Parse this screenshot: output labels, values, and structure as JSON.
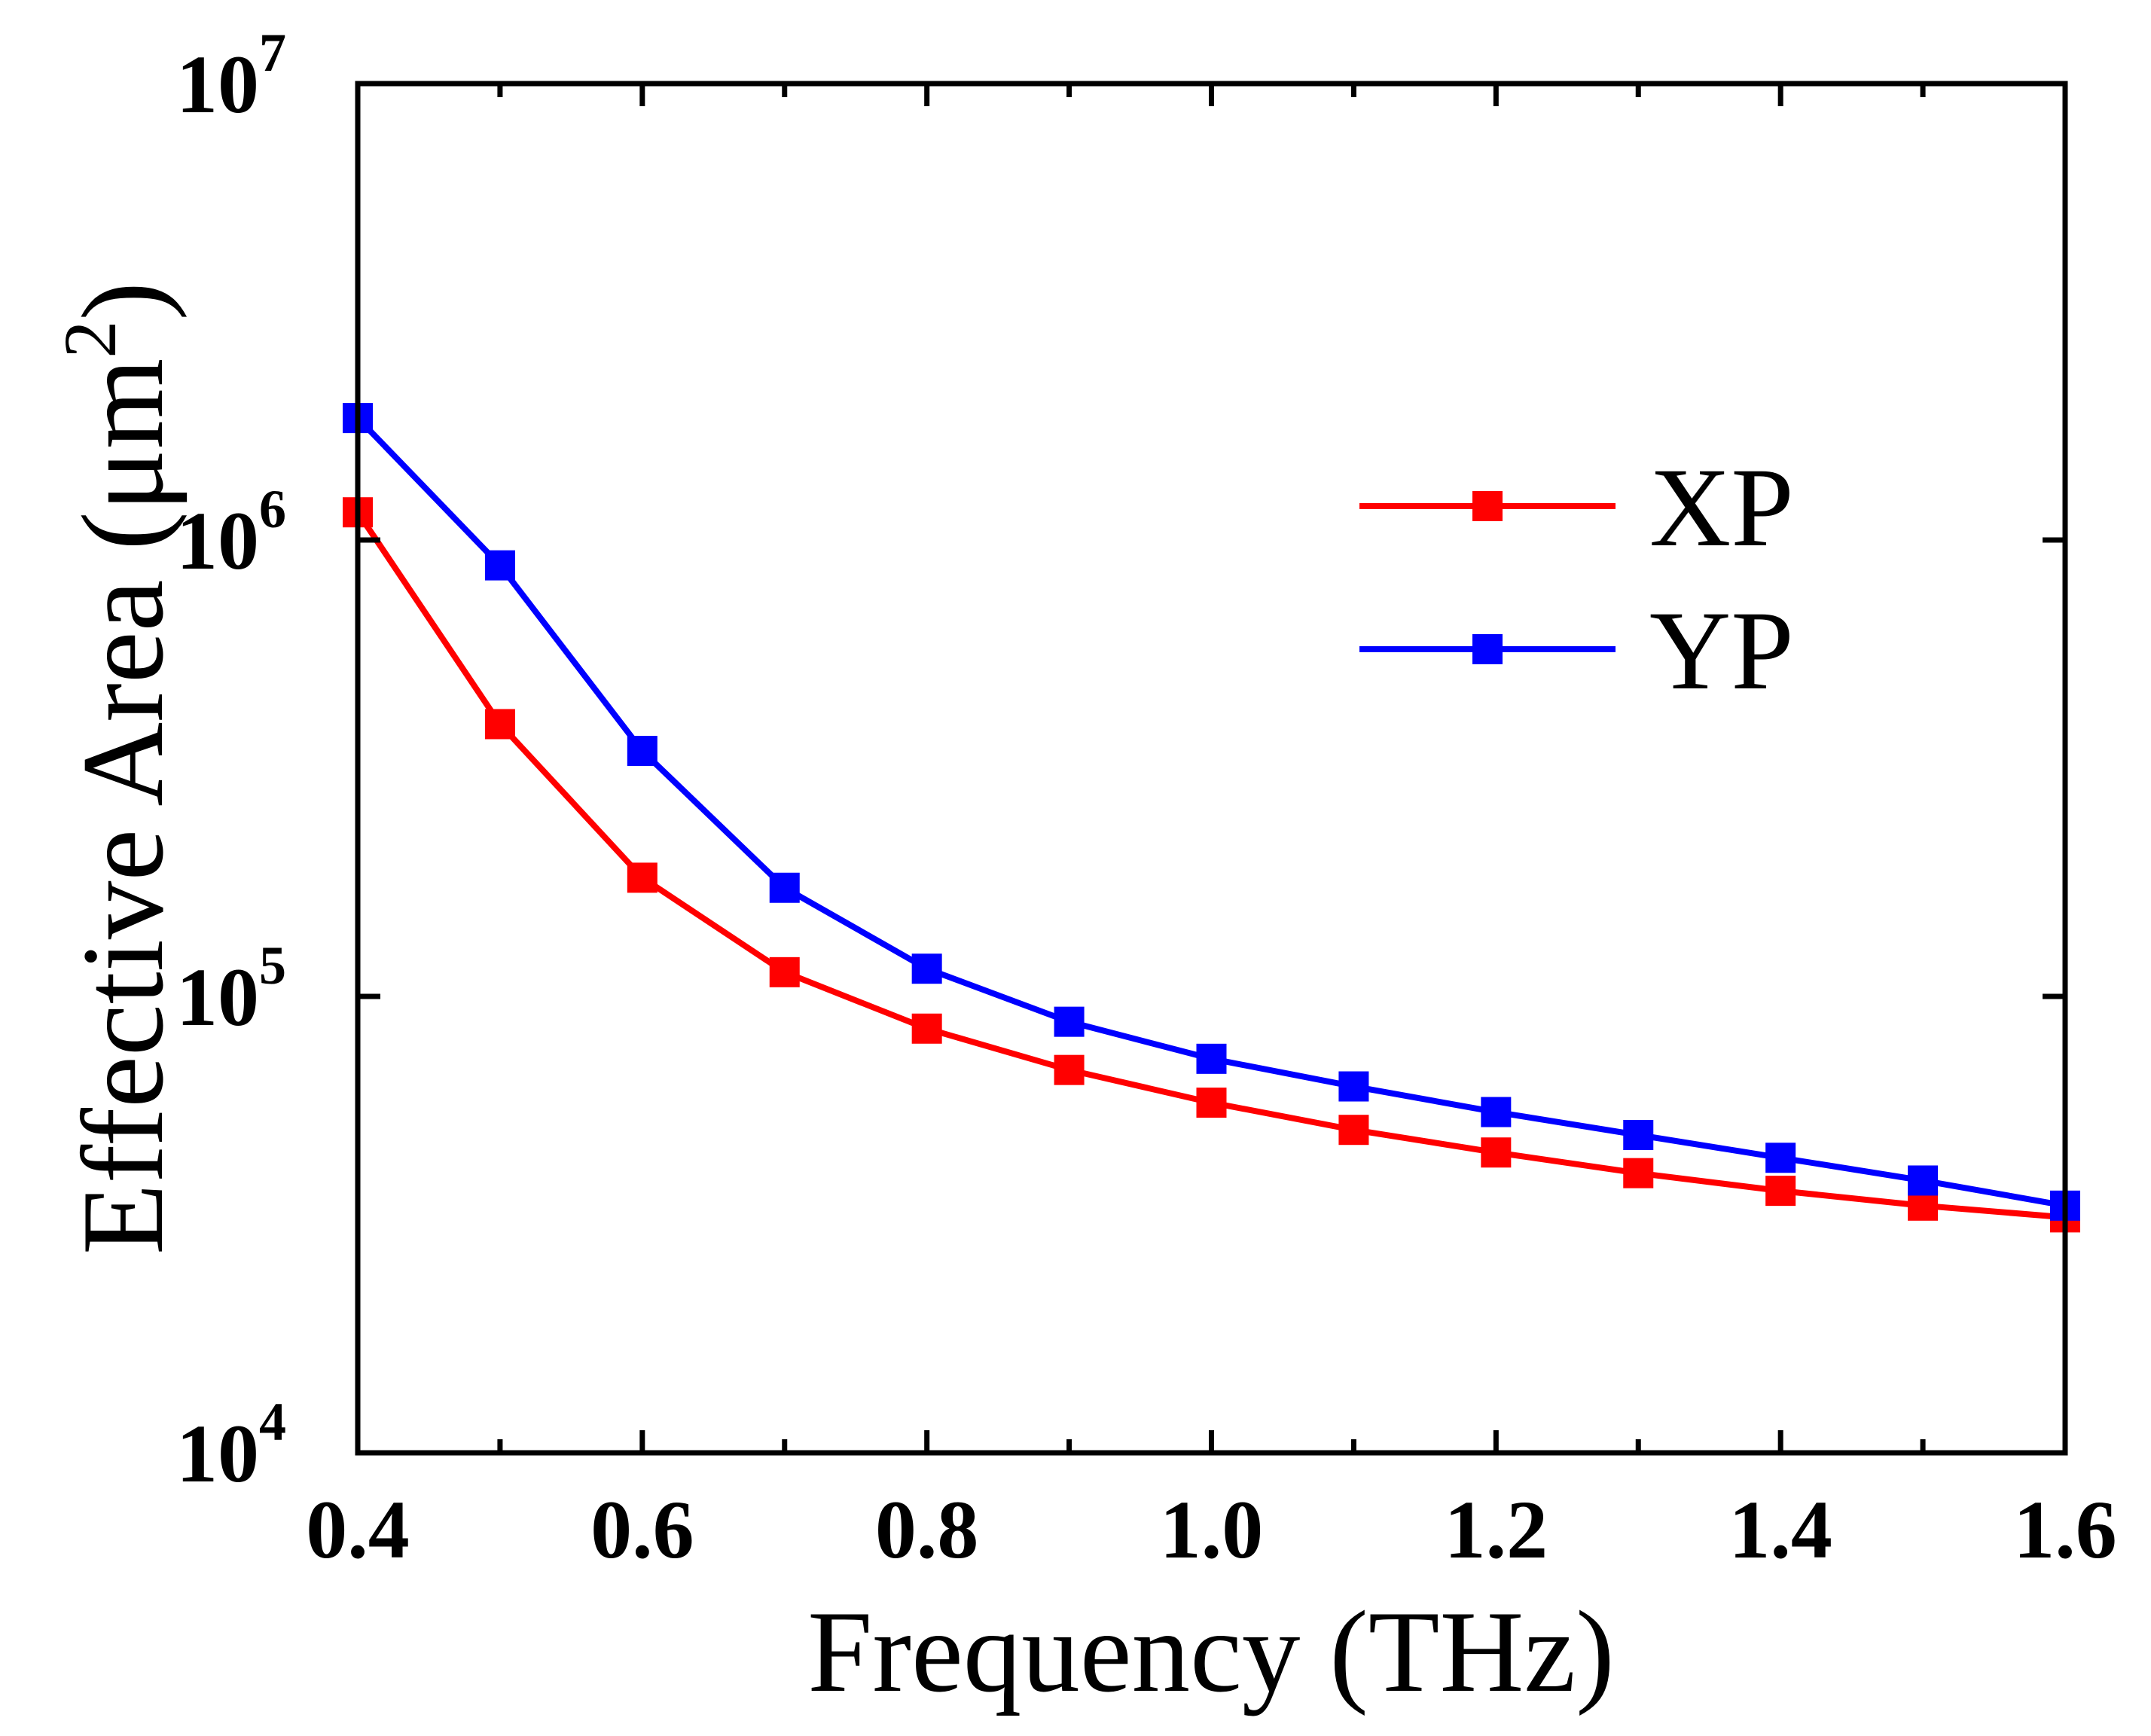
{
  "chart_data": {
    "type": "line",
    "title": "",
    "xlabel": "Frequency (THz)",
    "ylabel_prefix": "Effective Area (",
    "ylabel_unit": "μm",
    "ylabel_exp": "2",
    "ylabel_suffix": ")",
    "xlim": [
      0.4,
      1.6
    ],
    "ylim": [
      10000,
      10000000
    ],
    "yscale": "log",
    "x_ticks": [
      0.4,
      0.6,
      0.8,
      1.0,
      1.2,
      1.4,
      1.6
    ],
    "x_tick_labels": [
      "0.4",
      "0.6",
      "0.8",
      "1.0",
      "1.2",
      "1.4",
      "1.6"
    ],
    "y_ticks": [
      {
        "value": 10000,
        "base": "10",
        "exp": "4"
      },
      {
        "value": 100000,
        "base": "10",
        "exp": "5"
      },
      {
        "value": 1000000,
        "base": "10",
        "exp": "6"
      },
      {
        "value": 10000000,
        "base": "10",
        "exp": "7"
      }
    ],
    "x": [
      0.4,
      0.5,
      0.6,
      0.7,
      0.8,
      0.9,
      1.0,
      1.1,
      1.2,
      1.3,
      1.4,
      1.5,
      1.6
    ],
    "series": [
      {
        "name": "XP",
        "color": "#ff0000",
        "values": [
          1150000,
          395000,
          182000,
          113000,
          85000,
          69000,
          58500,
          51000,
          45500,
          41000,
          37500,
          34800,
          32800
        ]
      },
      {
        "name": "YP",
        "color": "#0000ff",
        "values": [
          1850000,
          880000,
          345000,
          173000,
          115000,
          88000,
          73000,
          63500,
          55800,
          49700,
          44300,
          39500,
          34800
        ]
      }
    ],
    "legend_position": "top-right",
    "grid": false
  }
}
